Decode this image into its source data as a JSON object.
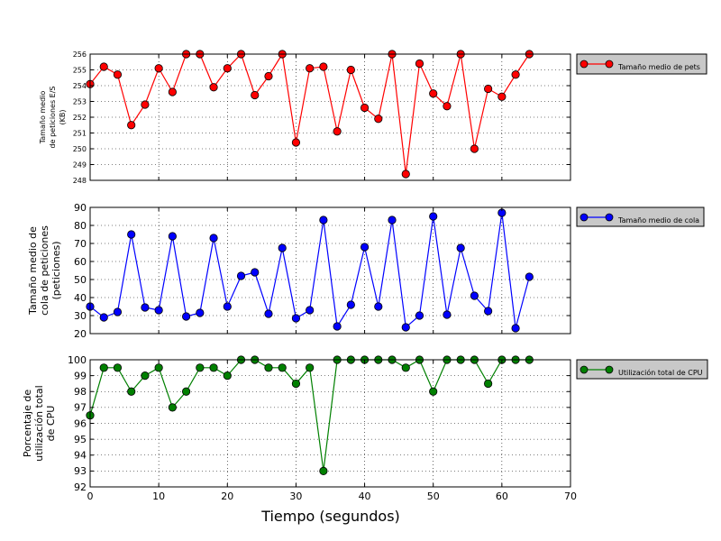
{
  "figure": {
    "xlabel": "Tiempo (segundos)"
  },
  "chart_data": [
    {
      "type": "line",
      "color": "#ff0000",
      "ylabel_lines": [
        "Tamaño medio",
        "de peticiones E/S",
        "(KB)"
      ],
      "legend": "Tamaño medio de pets",
      "legend_placement": "outside-right",
      "grid": true,
      "xlim": [
        0,
        70
      ],
      "ylim": [
        248,
        256
      ],
      "xticks": [
        0,
        10,
        20,
        30,
        40,
        50,
        60,
        70
      ],
      "yticks": [
        248,
        249,
        250,
        251,
        252,
        253,
        254,
        255,
        256
      ],
      "x": [
        0,
        2,
        4,
        6,
        8,
        10,
        12,
        14,
        16,
        18,
        20,
        22,
        24,
        26,
        28,
        30,
        32,
        34,
        36,
        38,
        40,
        42,
        44,
        46,
        48,
        50,
        52,
        54,
        56,
        58,
        60,
        62,
        64
      ],
      "values": [
        254.1,
        255.2,
        254.7,
        251.5,
        252.8,
        255.1,
        253.6,
        256.0,
        256.0,
        253.9,
        255.1,
        256.0,
        253.4,
        254.6,
        256.0,
        250.4,
        255.1,
        255.2,
        251.1,
        255.0,
        252.6,
        251.9,
        256.0,
        248.4,
        255.4,
        253.5,
        252.7,
        256.0,
        250.0,
        253.8,
        253.3,
        254.7,
        256.0
      ]
    },
    {
      "type": "line",
      "color": "#0000ff",
      "ylabel_lines": [
        "Tamaño medio de",
        "cola de peticiones",
        "(peticiones)"
      ],
      "legend": "Tamaño medio de cola",
      "legend_placement": "outside-right",
      "grid": true,
      "xlim": [
        0,
        70
      ],
      "ylim": [
        20,
        90
      ],
      "xticks": [
        0,
        10,
        20,
        30,
        40,
        50,
        60,
        70
      ],
      "yticks": [
        20,
        30,
        40,
        50,
        60,
        70,
        80,
        90
      ],
      "x": [
        0,
        2,
        4,
        6,
        8,
        10,
        12,
        14,
        16,
        18,
        20,
        22,
        24,
        26,
        28,
        30,
        32,
        34,
        36,
        38,
        40,
        42,
        44,
        46,
        48,
        50,
        52,
        54,
        56,
        58,
        60,
        62,
        64
      ],
      "values": [
        35,
        29,
        32,
        75,
        34.5,
        33,
        74,
        29.5,
        31.5,
        73,
        35,
        52,
        54,
        31,
        67.5,
        28.5,
        33,
        83,
        24,
        36,
        68,
        35,
        83,
        23.5,
        30,
        85,
        30.5,
        67.5,
        41,
        32.5,
        87,
        23,
        51.5
      ]
    },
    {
      "type": "line",
      "color": "#008000",
      "ylabel_lines": [
        "Porcentaje de",
        "utilización total",
        "de CPU"
      ],
      "legend": "Utilización total de CPU",
      "legend_placement": "outside-right",
      "grid": true,
      "xlim": [
        0,
        70
      ],
      "ylim": [
        92,
        100
      ],
      "xticks": [
        0,
        10,
        20,
        30,
        40,
        50,
        60,
        70
      ],
      "yticks": [
        92,
        93,
        94,
        95,
        96,
        97,
        98,
        99,
        100
      ],
      "x": [
        0,
        2,
        4,
        6,
        8,
        10,
        12,
        14,
        16,
        18,
        20,
        22,
        24,
        26,
        28,
        30,
        32,
        34,
        36,
        38,
        40,
        42,
        44,
        46,
        48,
        50,
        52,
        54,
        56,
        58,
        60,
        62,
        64
      ],
      "values": [
        96.5,
        99.5,
        99.5,
        98,
        99,
        99.5,
        97,
        98,
        99.5,
        99.5,
        99,
        100,
        100,
        99.5,
        99.5,
        98.5,
        99.5,
        93,
        100,
        100,
        100,
        100,
        100,
        99.5,
        100,
        98,
        100,
        100,
        100,
        98.5,
        100,
        100,
        100
      ]
    }
  ]
}
